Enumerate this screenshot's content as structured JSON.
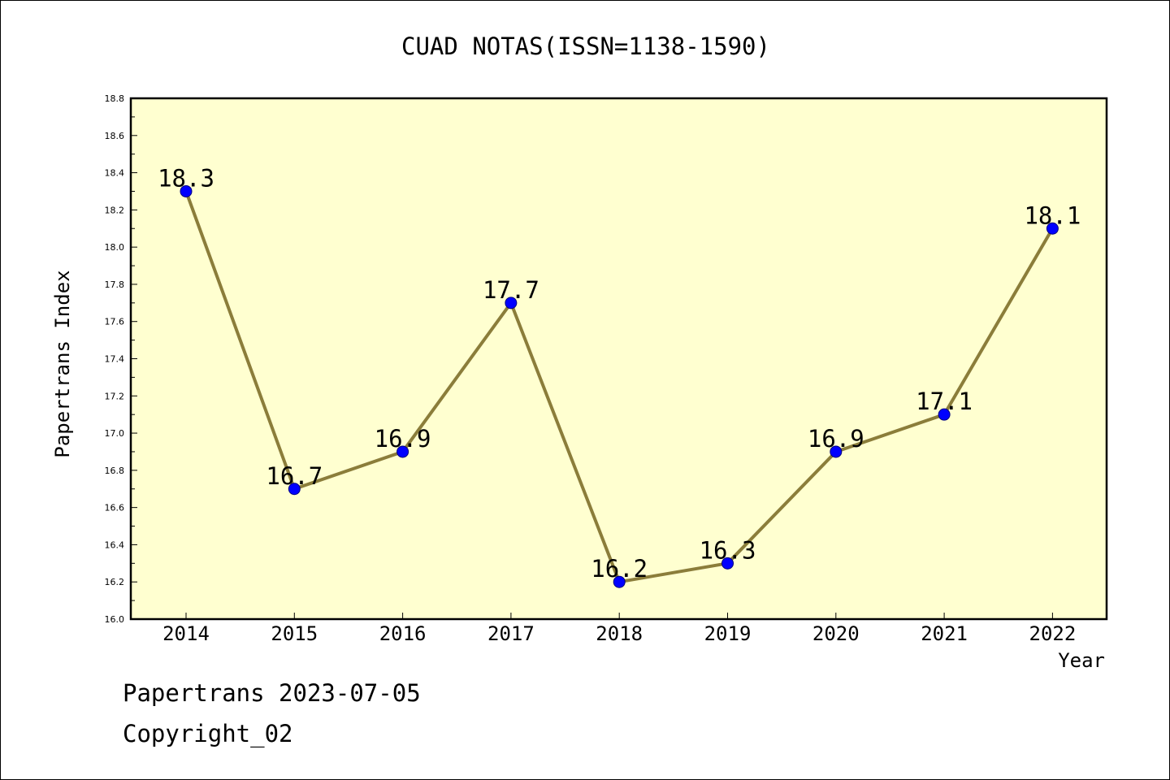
{
  "chart_data": {
    "type": "line",
    "title": "CUAD NOTAS(ISSN=1138-1590)",
    "xlabel": "Year",
    "ylabel": "Papertrans Index",
    "categories": [
      "2014",
      "2015",
      "2016",
      "2017",
      "2018",
      "2019",
      "2020",
      "2021",
      "2022"
    ],
    "series": [
      {
        "values": [
          18.3,
          16.7,
          16.9,
          17.7,
          16.2,
          16.3,
          16.9,
          17.1,
          18.1
        ],
        "labels": [
          "18.3",
          "16.7",
          "16.9",
          "17.7",
          "16.2",
          "16.3",
          "16.9",
          "17.1",
          "18.1"
        ]
      }
    ],
    "ylim": [
      16.0,
      18.8
    ],
    "yticks": [
      "16.0",
      "16.2",
      "16.4",
      "16.6",
      "16.8",
      "17.0",
      "17.2",
      "17.4",
      "17.6",
      "17.8",
      "18.0",
      "18.2",
      "18.4",
      "18.6",
      "18.8"
    ],
    "grid": false,
    "colors": {
      "plot_background": "#ffffd0",
      "line": "#8b7d3a",
      "marker": "#0000ff",
      "marker_edge": "#000080"
    }
  },
  "footer": {
    "line1": "Papertrans 2023-07-05",
    "line2": "Copyright_02"
  }
}
